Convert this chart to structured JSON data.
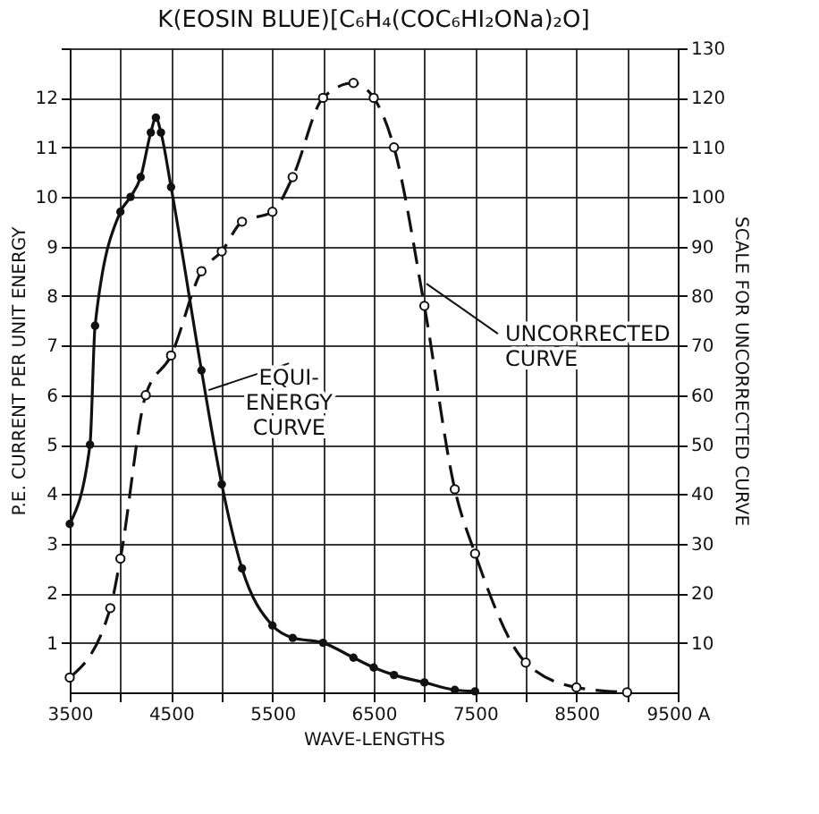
{
  "chart_data": {
    "type": "line",
    "title": "K(EOSIN BLUE)[C₆H₄(COC₆HI₂ONa)₂O]",
    "xlabel": "WAVE-LENGTHS",
    "ylabel": "P.E. CURRENT PER UNIT ENERGY",
    "y2label": "SCALE FOR UNCORRECTED CURVE",
    "xlim": [
      3500,
      9500
    ],
    "xticks": [
      3500,
      {
        "value": 4000,
        "label": null
      },
      4500,
      {
        "value": 5000,
        "label": null
      },
      5500,
      {
        "value": 6000,
        "label": null
      },
      6500,
      {
        "value": 7000,
        "label": null
      },
      7500,
      {
        "value": 8000,
        "label": null
      },
      8500,
      {
        "value": 9000,
        "label": null
      },
      {
        "value": 9500,
        "label": "9500 A"
      }
    ],
    "ylim": [
      0,
      13
    ],
    "yticks": [
      1,
      2,
      3,
      4,
      5,
      6,
      7,
      8,
      9,
      10,
      11,
      12,
      {
        "value": 13,
        "label": null
      }
    ],
    "y2lim": [
      0,
      130
    ],
    "y2ticks": [
      10,
      20,
      30,
      40,
      50,
      60,
      70,
      80,
      90,
      100,
      110,
      120,
      130
    ],
    "grid": true,
    "series": [
      {
        "color": "#111111",
        "line_style": "solid",
        "marker": "circle",
        "x": [
          3500,
          3700,
          3750,
          4000,
          4100,
          4200,
          4300,
          4350,
          4400,
          4500,
          4800,
          5000,
          5200,
          5500,
          5700,
          6000,
          6300,
          6500,
          6700,
          7000,
          7300,
          7500
        ],
        "values": [
          3.4,
          5.0,
          7.4,
          9.7,
          10.0,
          10.4,
          11.3,
          11.6,
          11.3,
          10.2,
          6.5,
          4.2,
          2.5,
          1.35,
          1.1,
          1.0,
          0.7,
          0.5,
          0.35,
          0.2,
          0.05,
          0.02
        ]
      },
      {
        "color": "#111111",
        "line_style": "dashed",
        "marker": "circle",
        "axis": "y2",
        "x": [
          3500,
          3900,
          4000,
          4250,
          4500,
          4800,
          5000,
          5200,
          5500,
          5700,
          6000,
          6300,
          6500,
          6700,
          7000,
          7300,
          7500,
          8000,
          8500,
          9000
        ],
        "values": [
          3,
          17,
          27,
          60,
          68,
          85,
          89,
          95,
          97,
          104,
          120,
          123,
          120,
          110,
          78,
          41,
          28,
          6,
          1,
          0
        ]
      }
    ],
    "annotations": [
      {
        "text": "EQUI-\nENERGY\nCURVE",
        "x": 4870,
        "y": 6.1
      },
      {
        "text": "UNCORRECTED\nCURVE",
        "x": 7020,
        "y": 8.25
      }
    ]
  }
}
